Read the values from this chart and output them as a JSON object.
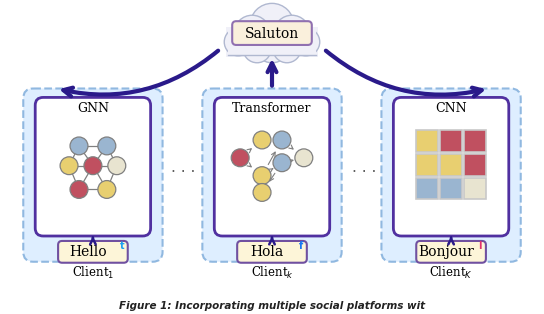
{
  "bg_color": "#ffffff",
  "saluton_box_fill": "#faf0dc",
  "saluton_box_border": "#9070b0",
  "saluton_text": "Saluton",
  "client_outer_fill": "#deeeff",
  "client_outer_border": "#90b8e0",
  "client_inner_fill": "#ffffff",
  "client_inner_border": "#5030a0",
  "hello_box_fill": "#fdf5d8",
  "hello_box_border": "#7050a0",
  "arrow_color": "#2a1a8a",
  "cloud_fill": "#f0f0f8",
  "cloud_border": "#b0b8d0",
  "node_blue": "#9ab5d0",
  "node_red": "#c05060",
  "node_yellow": "#e8cf70",
  "node_cream": "#e8e4d0",
  "edge_color": "#808080",
  "twitter_color": "#1da1f2",
  "facebook_color": "#1877f2",
  "instagram_color": "#e1306c",
  "dot_color": "#606060",
  "caption": "Figure 1: Incorporating multiple social platforms wit",
  "panel_centers": [
    92,
    272,
    452
  ],
  "model_names": [
    "GNN",
    "Transformer",
    "CNN"
  ],
  "lang_labels": [
    "Hello",
    "Hola",
    "Bonjour"
  ],
  "client_names": [
    "1",
    "k",
    "K"
  ]
}
